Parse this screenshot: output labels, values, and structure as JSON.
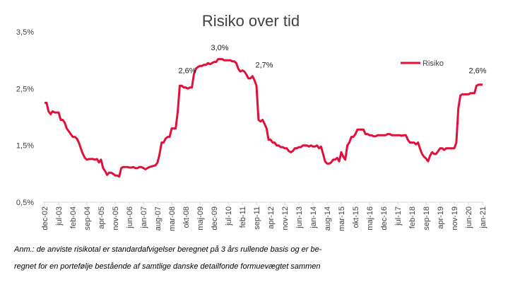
{
  "chart_data": {
    "type": "line",
    "title": "Risiko over tid",
    "categories": [
      "dec-02",
      null,
      null,
      null,
      null,
      null,
      null,
      "jul-03",
      null,
      null,
      null,
      null,
      null,
      null,
      "feb-04",
      null,
      null,
      null,
      null,
      null,
      null,
      "sep-04",
      null,
      null,
      null,
      null,
      null,
      null,
      "apr-05",
      null,
      null,
      null,
      null,
      null,
      null,
      "nov-05",
      null,
      null,
      null,
      null,
      null,
      null,
      "jun-06",
      null,
      null,
      null,
      null,
      null,
      null,
      "jan-07",
      null,
      null,
      null,
      null,
      null,
      null,
      "aug-07",
      null,
      null,
      null,
      null,
      null,
      null,
      "mar-08",
      null,
      null,
      null,
      null,
      null,
      null,
      "okt-08",
      null,
      null,
      null,
      null,
      null,
      null,
      "maj-09",
      null,
      null,
      null,
      null,
      null,
      null,
      "dec-09",
      null,
      null,
      null,
      null,
      null,
      null,
      "jul-10",
      null,
      null,
      null,
      null,
      null,
      null,
      "feb-11",
      null,
      null,
      null,
      null,
      null,
      null,
      "sep-11",
      null,
      null,
      null,
      null,
      null,
      null,
      "apr-12",
      null,
      null,
      null,
      null,
      null,
      null,
      "nov-12",
      null,
      null,
      null,
      null,
      null,
      null,
      "jun-13",
      null,
      null,
      null,
      null,
      null,
      null,
      "jan-14",
      null,
      null,
      null,
      null,
      null,
      null,
      "aug-14",
      null,
      null,
      null,
      null,
      null,
      null,
      "mar-15",
      null,
      null,
      null,
      null,
      null,
      null,
      "okt-15",
      null,
      null,
      null,
      null,
      null,
      null,
      "maj-16",
      null,
      null,
      null,
      null,
      null,
      null,
      "dec-16",
      null,
      null,
      null,
      null,
      null,
      null,
      "jul-17",
      null,
      null,
      null,
      null,
      null,
      null,
      "feb-18",
      null,
      null,
      null,
      null,
      null,
      null,
      "sep-18",
      null,
      null,
      null,
      null,
      null,
      null,
      "apr-19",
      null,
      null,
      null,
      null,
      null,
      null,
      "nov-19",
      null,
      null,
      null,
      null,
      null,
      null,
      "jun-20",
      null,
      null,
      null,
      null,
      null,
      null,
      "jan-21"
    ],
    "series": [
      {
        "name": "Risiko",
        "color": "#e0103a",
        "values": [
          2.25,
          2.25,
          2.1,
          2.05,
          2.1,
          2.08,
          2.08,
          2.08,
          1.95,
          1.95,
          1.9,
          1.8,
          1.75,
          1.7,
          1.65,
          1.65,
          1.62,
          1.55,
          1.45,
          1.35,
          1.28,
          1.25,
          1.26,
          1.26,
          1.26,
          1.25,
          1.26,
          1.2,
          1.25,
          1.1,
          1.05,
          0.98,
          1.02,
          1.02,
          1.0,
          0.97,
          0.97,
          0.95,
          1.1,
          1.12,
          1.12,
          1.12,
          1.11,
          1.11,
          1.12,
          1.1,
          1.1,
          1.12,
          1.12,
          1.1,
          1.08,
          1.1,
          1.12,
          1.13,
          1.14,
          1.15,
          1.2,
          1.35,
          1.55,
          1.55,
          1.62,
          1.65,
          1.65,
          1.8,
          1.8,
          1.8,
          2.1,
          2.55,
          2.55,
          2.52,
          2.52,
          2.5,
          2.52,
          2.52,
          2.75,
          2.85,
          2.88,
          2.9,
          2.9,
          2.92,
          2.92,
          2.95,
          2.93,
          2.95,
          2.97,
          2.97,
          3.02,
          3.02,
          3.02,
          3.0,
          3.0,
          3.0,
          3.0,
          2.98,
          2.98,
          2.95,
          2.85,
          2.8,
          2.82,
          2.8,
          2.75,
          2.68,
          2.68,
          2.72,
          2.65,
          2.55,
          1.95,
          1.92,
          1.95,
          1.88,
          1.8,
          1.6,
          1.6,
          1.55,
          1.55,
          1.5,
          1.5,
          1.47,
          1.47,
          1.45,
          1.45,
          1.4,
          1.38,
          1.4,
          1.45,
          1.45,
          1.47,
          1.47,
          1.5,
          1.5,
          1.5,
          1.48,
          1.5,
          1.48,
          1.48,
          1.5,
          1.45,
          1.48,
          1.35,
          1.22,
          1.18,
          1.18,
          1.2,
          1.25,
          1.25,
          1.28,
          1.22,
          1.38,
          1.3,
          1.25,
          1.5,
          1.55,
          1.65,
          1.65,
          1.7,
          1.78,
          1.78,
          1.78,
          1.78,
          1.7,
          1.7,
          1.68,
          1.68,
          1.66,
          1.66,
          1.68,
          1.68,
          1.68,
          1.68,
          1.68,
          1.7,
          1.7,
          1.68,
          1.68,
          1.68,
          1.68,
          1.68,
          1.67,
          1.68,
          1.68,
          1.6,
          1.55,
          1.55,
          1.55,
          1.52,
          1.55,
          1.45,
          1.35,
          1.3,
          1.27,
          1.22,
          1.32,
          1.38,
          1.35,
          1.35,
          1.4,
          1.45,
          1.45,
          1.42,
          1.45,
          1.45,
          1.45,
          1.45,
          1.45,
          1.55,
          2.15,
          2.38,
          2.4,
          2.4,
          2.4,
          2.4,
          2.42,
          2.42,
          2.42,
          2.55,
          2.57,
          2.57,
          2.57
        ]
      }
    ],
    "ylim": [
      0.5,
      3.5
    ],
    "yticks": [
      {
        "value": 0.5,
        "label": "0,5%"
      },
      {
        "value": 1.5,
        "label": "1,5%"
      },
      {
        "value": 2.5,
        "label": "2,5%"
      },
      {
        "value": 3.5,
        "label": "3,5%"
      }
    ],
    "grid": false,
    "legend": "top-right",
    "annotations": [
      {
        "text": "2,6%",
        "value": 2.6
      },
      {
        "text": "3,0%",
        "value": 3.0
      },
      {
        "text": "2,7%",
        "value": 2.7
      },
      {
        "text": "2,6%",
        "value": 2.6
      }
    ],
    "note": [
      "Anm.: de anviste risikotal er standardafvigelser beregnet på 3 års rullende basis og er be-",
      "regnet for en portefølje bestående af samtlige danske detailfonde formuevægtet sammen"
    ]
  }
}
